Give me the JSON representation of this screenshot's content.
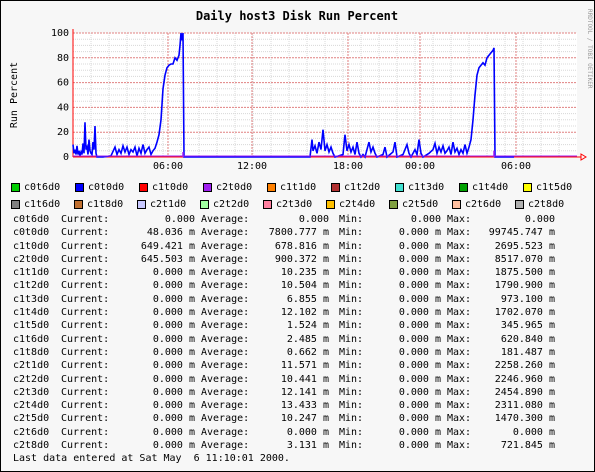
{
  "chart_data": {
    "type": "area",
    "title": "Daily host3 Disk Run Percent",
    "ylabel": "Run Percent",
    "watermark": "RRDTOOL / TOBI OETIKER",
    "ylim": [
      0,
      100
    ],
    "y_ticks": [
      0,
      20,
      40,
      60,
      80,
      100
    ],
    "x_ticks": [
      "06:00",
      "12:00",
      "18:00",
      "00:00",
      "06:00"
    ],
    "grid": true,
    "series": [
      {
        "name": "c0t0d0",
        "color": "#0000ff",
        "values": [
          [
            0,
            10
          ],
          [
            1,
            3
          ],
          [
            2,
            6
          ],
          [
            3,
            2
          ],
          [
            4,
            9
          ],
          [
            5,
            2
          ],
          [
            6,
            5
          ],
          [
            7,
            1
          ],
          [
            8,
            4
          ],
          [
            9,
            2
          ],
          [
            10,
            11
          ],
          [
            11,
            3
          ],
          [
            12,
            28
          ],
          [
            13,
            6
          ],
          [
            14,
            8
          ],
          [
            15,
            2
          ],
          [
            16,
            14
          ],
          [
            17,
            5
          ],
          [
            18,
            3
          ],
          [
            19,
            2
          ],
          [
            20,
            12
          ],
          [
            21,
            6
          ],
          [
            22,
            25
          ],
          [
            23,
            3
          ],
          [
            24,
            0
          ],
          [
            30,
            0
          ],
          [
            38,
            1
          ],
          [
            42,
            8
          ],
          [
            44,
            2
          ],
          [
            46,
            6
          ],
          [
            48,
            3
          ],
          [
            50,
            9
          ],
          [
            52,
            4
          ],
          [
            54,
            8
          ],
          [
            56,
            2
          ],
          [
            58,
            6
          ],
          [
            60,
            4
          ],
          [
            62,
            8
          ],
          [
            64,
            1
          ],
          [
            66,
            7
          ],
          [
            68,
            3
          ],
          [
            70,
            10
          ],
          [
            72,
            3
          ],
          [
            74,
            6
          ],
          [
            76,
            8
          ],
          [
            78,
            2
          ],
          [
            80,
            5
          ],
          [
            82,
            7
          ],
          [
            84,
            12
          ],
          [
            86,
            18
          ],
          [
            88,
            30
          ],
          [
            90,
            55
          ],
          [
            92,
            66
          ],
          [
            94,
            72
          ],
          [
            96,
            74
          ],
          [
            98,
            75
          ],
          [
            100,
            75
          ],
          [
            102,
            80
          ],
          [
            104,
            78
          ],
          [
            106,
            82
          ],
          [
            107,
            90
          ],
          [
            108,
            100
          ],
          [
            109,
            94
          ],
          [
            110,
            100
          ],
          [
            111,
            0
          ],
          [
            115,
            0
          ],
          [
            150,
            0
          ],
          [
            205,
            0
          ],
          [
            220,
            0
          ],
          [
            237,
            0
          ],
          [
            239,
            14
          ],
          [
            240,
            5
          ],
          [
            242,
            9
          ],
          [
            244,
            3
          ],
          [
            246,
            12
          ],
          [
            248,
            6
          ],
          [
            250,
            22
          ],
          [
            252,
            5
          ],
          [
            254,
            10
          ],
          [
            256,
            4
          ],
          [
            258,
            8
          ],
          [
            260,
            3
          ],
          [
            262,
            0
          ],
          [
            270,
            2
          ],
          [
            272,
            18
          ],
          [
            274,
            5
          ],
          [
            276,
            10
          ],
          [
            278,
            4
          ],
          [
            280,
            8
          ],
          [
            282,
            2
          ],
          [
            284,
            12
          ],
          [
            286,
            3
          ],
          [
            288,
            0
          ],
          [
            290,
            2
          ],
          [
            292,
            0
          ],
          [
            296,
            12
          ],
          [
            298,
            4
          ],
          [
            300,
            8
          ],
          [
            302,
            3
          ],
          [
            304,
            0
          ],
          [
            310,
            2
          ],
          [
            312,
            8
          ],
          [
            314,
            0
          ],
          [
            320,
            4
          ],
          [
            322,
            12
          ],
          [
            324,
            0
          ],
          [
            330,
            2
          ],
          [
            334,
            10
          ],
          [
            336,
            3
          ],
          [
            338,
            0
          ],
          [
            342,
            6
          ],
          [
            344,
            2
          ],
          [
            346,
            14
          ],
          [
            348,
            3
          ],
          [
            350,
            0
          ],
          [
            356,
            3
          ],
          [
            360,
            6
          ],
          [
            362,
            11
          ],
          [
            364,
            3
          ],
          [
            366,
            8
          ],
          [
            368,
            4
          ],
          [
            370,
            9
          ],
          [
            372,
            3
          ],
          [
            374,
            5
          ],
          [
            376,
            8
          ],
          [
            378,
            2
          ],
          [
            380,
            12
          ],
          [
            382,
            4
          ],
          [
            384,
            7
          ],
          [
            386,
            2
          ],
          [
            388,
            6
          ],
          [
            390,
            3
          ],
          [
            392,
            10
          ],
          [
            394,
            3
          ],
          [
            396,
            8
          ],
          [
            398,
            14
          ],
          [
            400,
            30
          ],
          [
            402,
            50
          ],
          [
            404,
            66
          ],
          [
            406,
            72
          ],
          [
            408,
            74
          ],
          [
            410,
            76
          ],
          [
            412,
            74
          ],
          [
            414,
            80
          ],
          [
            416,
            82
          ],
          [
            418,
            84
          ],
          [
            420,
            86
          ],
          [
            421,
            88
          ],
          [
            422,
            0
          ],
          [
            428,
            0
          ],
          [
            441,
            0
          ]
        ]
      }
    ],
    "legend": [
      [
        "c0t6d0",
        "c0t0d0",
        "c1t0d0",
        "c2t0d0",
        "c1t1d0",
        "c1t2d0",
        "c1t3d0",
        "c1t4d0",
        "c1t5d0"
      ],
      [
        "c1t6d0",
        "c1t8d0",
        "c2t1d0",
        "c2t2d0",
        "c2t3d0",
        "c2t4d0",
        "c2t5d0",
        "c2t6d0",
        "c2t8d0"
      ]
    ],
    "legend_colors": [
      [
        "#00cc00",
        "#0000ff",
        "#ff0000",
        "#a020f0",
        "#ff8000",
        "#b03030",
        "#40e0d0",
        "#00a000",
        "#ffff00"
      ],
      [
        "#808080",
        "#c07030",
        "#c8c8ff",
        "#a0ffa0",
        "#ff80a0",
        "#ffc000",
        "#80a040",
        "#ffc0a0",
        "#b0b0b0"
      ]
    ]
  },
  "stats_columns": {
    "current": "Current:",
    "average": "Average:",
    "min": "Min:",
    "max": "Max:"
  },
  "stats": [
    {
      "name": "c0t6d0",
      "current": "0.000",
      "average": "0.000",
      "min": "0.000",
      "max": "0.000"
    },
    {
      "name": "c0t0d0",
      "current": "48.036 m",
      "average": "7800.777 m",
      "min": "0.000 m",
      "max": "99745.747 m"
    },
    {
      "name": "c1t0d0",
      "current": "649.421 m",
      "average": "678.816 m",
      "min": "0.000 m",
      "max": "2695.523 m"
    },
    {
      "name": "c2t0d0",
      "current": "645.503 m",
      "average": "900.372 m",
      "min": "0.000 m",
      "max": "8517.070 m"
    },
    {
      "name": "c1t1d0",
      "current": "0.000 m",
      "average": "10.235 m",
      "min": "0.000 m",
      "max": "1875.500 m"
    },
    {
      "name": "c1t2d0",
      "current": "0.000 m",
      "average": "10.504 m",
      "min": "0.000 m",
      "max": "1790.900 m"
    },
    {
      "name": "c1t3d0",
      "current": "0.000 m",
      "average": "6.855 m",
      "min": "0.000 m",
      "max": "973.100 m"
    },
    {
      "name": "c1t4d0",
      "current": "0.000 m",
      "average": "12.102 m",
      "min": "0.000 m",
      "max": "1702.070 m"
    },
    {
      "name": "c1t5d0",
      "current": "0.000 m",
      "average": "1.524 m",
      "min": "0.000 m",
      "max": "345.965 m"
    },
    {
      "name": "c1t6d0",
      "current": "0.000 m",
      "average": "2.485 m",
      "min": "0.000 m",
      "max": "620.840 m"
    },
    {
      "name": "c1t8d0",
      "current": "0.000 m",
      "average": "0.662 m",
      "min": "0.000 m",
      "max": "181.487 m"
    },
    {
      "name": "c2t1d0",
      "current": "0.000 m",
      "average": "11.571 m",
      "min": "0.000 m",
      "max": "2258.260 m"
    },
    {
      "name": "c2t2d0",
      "current": "0.000 m",
      "average": "10.441 m",
      "min": "0.000 m",
      "max": "2246.960 m"
    },
    {
      "name": "c2t3d0",
      "current": "0.000 m",
      "average": "12.141 m",
      "min": "0.000 m",
      "max": "2454.890 m"
    },
    {
      "name": "c2t4d0",
      "current": "0.000 m",
      "average": "13.433 m",
      "min": "0.000 m",
      "max": "2311.080 m"
    },
    {
      "name": "c2t5d0",
      "current": "0.000 m",
      "average": "10.247 m",
      "min": "0.000 m",
      "max": "1470.300 m"
    },
    {
      "name": "c2t6d0",
      "current": "0.000 m",
      "average": "0.000 m",
      "min": "0.000 m",
      "max": "0.000 m"
    },
    {
      "name": "c2t8d0",
      "current": "0.000 m",
      "average": "3.131 m",
      "min": "0.000 m",
      "max": "721.845 m"
    }
  ],
  "footer": "Last data entered at Sat May  6 11:10:01 2000."
}
